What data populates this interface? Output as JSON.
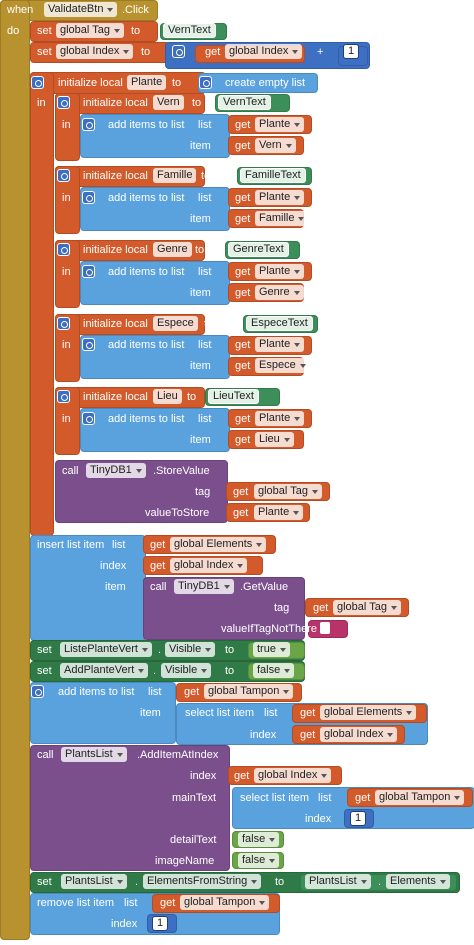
{
  "lines": [
    [
      "when",
      "ValidateBtn",
      ".Click"
    ],
    [
      "do",
      "set",
      "global Tag",
      "to",
      "VernText"
    ],
    [
      "set",
      "global Index",
      "to",
      "get",
      "global Index",
      "+",
      "1"
    ],
    [
      "initialize local",
      "Plante",
      "to",
      "create empty list"
    ],
    [
      "in",
      "initialize local",
      "Vern",
      "to",
      "VernText"
    ],
    [
      "in",
      "add items to list",
      "list",
      "get",
      "Plante"
    ],
    [
      "item",
      "get",
      "Vern"
    ],
    [
      "initialize local",
      "Famille",
      "to",
      "FamilleText"
    ],
    [
      "in",
      "add items to list",
      "list",
      "get",
      "Plante"
    ],
    [
      "item",
      "get",
      "Famille"
    ],
    [
      "initialize local",
      "Genre",
      "to",
      "GenreText"
    ],
    [
      "in",
      "add items to list",
      "list",
      "get",
      "Plante"
    ],
    [
      "item",
      "get",
      "Genre"
    ],
    [
      "initialize local",
      "Espece",
      "to",
      "EspeceText"
    ],
    [
      "in",
      "add items to list",
      "list",
      "get",
      "Plante"
    ],
    [
      "item",
      "get",
      "Espece"
    ],
    [
      "initialize local",
      "Lieu",
      "to",
      "LieuText"
    ],
    [
      "in",
      "add items to list",
      "list",
      "get",
      "Plante"
    ],
    [
      "item",
      "get",
      "Lieu"
    ],
    [
      "call",
      "TinyDB1",
      ".StoreValue"
    ],
    [
      "tag",
      "get",
      "global Tag"
    ],
    [
      "valueToStore",
      "get",
      "Plante"
    ],
    [
      "insert list item",
      "list",
      "get",
      "global Elements"
    ],
    [
      "index",
      "get",
      "global Index"
    ],
    [
      "item",
      "call",
      "TinyDB1",
      ".GetValue"
    ],
    [
      "tag",
      "get",
      "global Tag"
    ],
    [
      "valueIfTagNotThere"
    ],
    [
      "set",
      "ListePlanteVert",
      ".",
      "Visible",
      "to",
      "true"
    ],
    [
      "set",
      "AddPlanteVert",
      ".",
      "Visible",
      "to",
      "false"
    ],
    [
      "add items to list",
      "list",
      "get",
      "global Tampon"
    ],
    [
      "item",
      "select list item",
      "list",
      "get",
      "global Elements"
    ],
    [
      "index",
      "get",
      "global Index"
    ],
    [
      "call",
      "PlantsList",
      ".AddItemAtIndex"
    ],
    [
      "index",
      "get",
      "global Index"
    ],
    [
      "mainText",
      "select list item",
      "list",
      "get",
      "global Tampon"
    ],
    [
      "index",
      "1"
    ],
    [
      "detailText",
      "false"
    ],
    [
      "imageName",
      "false"
    ],
    [
      "set",
      "PlantsList",
      ".",
      "ElementsFromString",
      "to",
      "PlantsList",
      ".",
      "Elements"
    ],
    [
      "remove list item",
      "list",
      "get",
      "global Tampon"
    ],
    [
      "index",
      "1"
    ]
  ]
}
